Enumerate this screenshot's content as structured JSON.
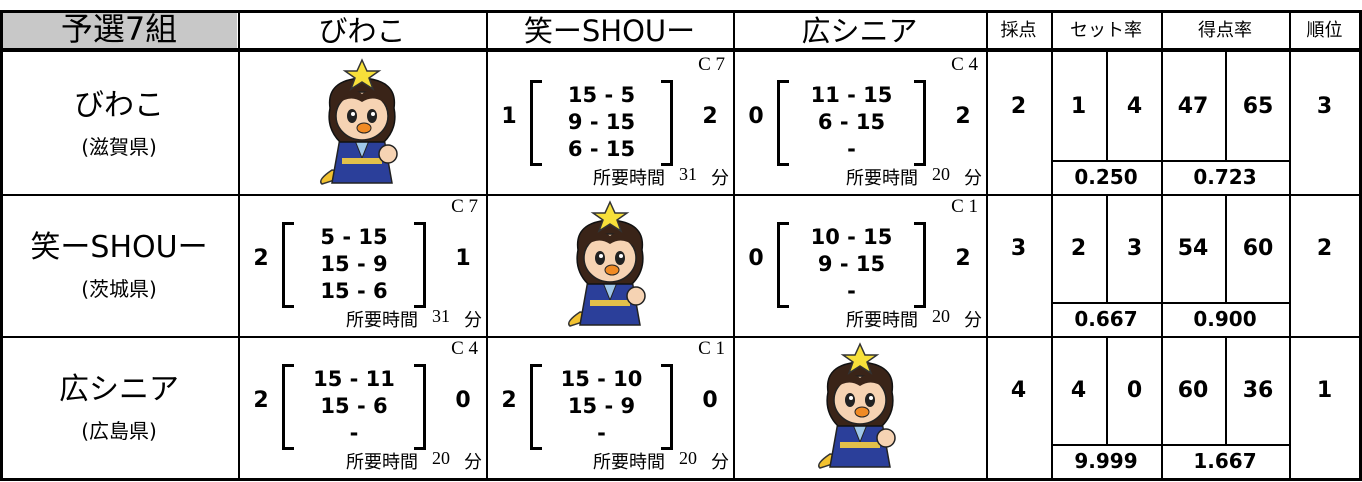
{
  "header": {
    "group": "予選7組",
    "teams": [
      "びわこ",
      "笑ーSHOUー",
      "広シニア"
    ],
    "score": "採点",
    "set_rate": "セット率",
    "point_rate": "得点率",
    "rank": "順位"
  },
  "rows": [
    {
      "team": "びわこ",
      "pref": "(滋賀県)",
      "matches": [
        null,
        {
          "court": "C 7",
          "left": "1",
          "sets": [
            "15 - 5",
            "9 - 15",
            "6 - 15"
          ],
          "right": "2",
          "time_label": "所要時間",
          "time": "31",
          "unit": "分"
        },
        {
          "court": "C 4",
          "left": "0",
          "sets": [
            "11 - 15",
            "6 - 15",
            "-"
          ],
          "right": "2",
          "time_label": "所要時間",
          "time": "20",
          "unit": "分"
        }
      ],
      "score": "2",
      "sets_won": "1",
      "sets_lost": "4",
      "set_rate": "0.250",
      "points_won": "47",
      "points_lost": "65",
      "point_rate": "0.723",
      "rank": "3"
    },
    {
      "team": "笑ーSHOUー",
      "pref": "(茨城県)",
      "matches": [
        {
          "court": "C 7",
          "left": "2",
          "sets": [
            "5 - 15",
            "15 - 9",
            "15 - 6"
          ],
          "right": "1",
          "time_label": "所要時間",
          "time": "31",
          "unit": "分"
        },
        null,
        {
          "court": "C 1",
          "left": "0",
          "sets": [
            "10 - 15",
            "9 - 15",
            "-"
          ],
          "right": "2",
          "time_label": "所要時間",
          "time": "20",
          "unit": "分"
        }
      ],
      "score": "3",
      "sets_won": "2",
      "sets_lost": "3",
      "set_rate": "0.667",
      "points_won": "54",
      "points_lost": "60",
      "point_rate": "0.900",
      "rank": "2"
    },
    {
      "team": "広シニア",
      "pref": "(広島県)",
      "matches": [
        {
          "court": "C 4",
          "left": "2",
          "sets": [
            "15 - 11",
            "15 - 6",
            "-"
          ],
          "right": "0",
          "time_label": "所要時間",
          "time": "20",
          "unit": "分"
        },
        {
          "court": "C 1",
          "left": "2",
          "sets": [
            "15 - 10",
            "15 - 9",
            "-"
          ],
          "right": "0",
          "time_label": "所要時間",
          "time": "20",
          "unit": "分"
        },
        null
      ],
      "score": "4",
      "sets_won": "4",
      "sets_lost": "0",
      "set_rate": "9.999",
      "points_won": "60",
      "points_lost": "36",
      "point_rate": "1.667",
      "rank": "1"
    }
  ]
}
